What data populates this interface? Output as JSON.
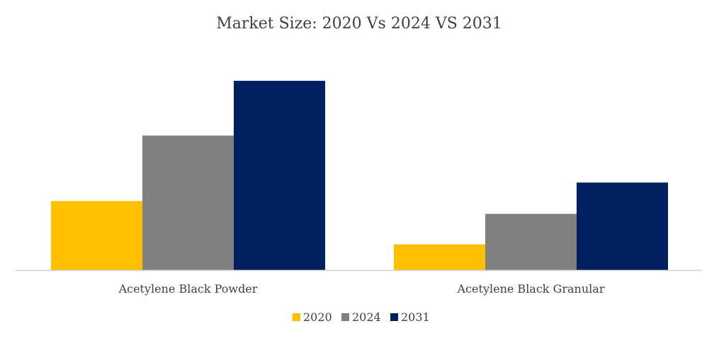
{
  "chart_data": {
    "type": "bar",
    "title": "Market Size: 2020 Vs 2024 VS 2031",
    "categories": [
      "Acetylene Black Powder",
      "Acetylene Black Granular"
    ],
    "series": [
      {
        "name": "2020",
        "color": "#FFC000",
        "values": [
          97,
          36
        ]
      },
      {
        "name": "2024",
        "color": "#808080",
        "values": [
          189,
          79
        ]
      },
      {
        "name": "2031",
        "color": "#002060",
        "values": [
          266,
          123
        ]
      }
    ],
    "ylim": [
      0,
      280
    ],
    "xlabel": "",
    "ylabel": "",
    "grid": false,
    "legend_position": "bottom-center"
  }
}
